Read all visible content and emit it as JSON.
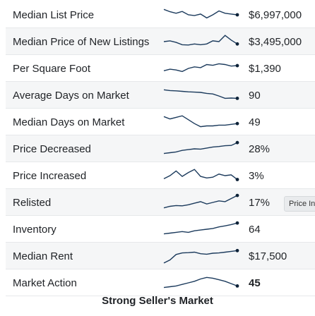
{
  "metrics": [
    {
      "label": "Median List Price",
      "value": "$6,997,000",
      "trend": [
        0.85,
        0.7,
        0.6,
        0.72,
        0.5,
        0.45,
        0.55,
        0.3,
        0.5,
        0.75,
        0.6,
        0.55,
        0.5
      ]
    },
    {
      "label": "Median Price of New Listings",
      "value": "$3,495,000",
      "trend": [
        0.5,
        0.55,
        0.45,
        0.3,
        0.28,
        0.35,
        0.3,
        0.35,
        0.55,
        0.5,
        0.9,
        0.6,
        0.35
      ]
    },
    {
      "label": "Per Square Foot",
      "value": "$1,390",
      "trend": [
        0.35,
        0.45,
        0.4,
        0.3,
        0.5,
        0.6,
        0.55,
        0.75,
        0.7,
        0.8,
        0.75,
        0.65,
        0.68
      ]
    },
    {
      "label": "Average Days on Market",
      "value": "90",
      "trend": [
        0.85,
        0.8,
        0.78,
        0.75,
        0.72,
        0.7,
        0.68,
        0.62,
        0.58,
        0.45,
        0.3,
        0.32,
        0.3
      ]
    },
    {
      "label": "Median Days on Market",
      "value": "49",
      "trend": [
        0.85,
        0.7,
        0.8,
        0.9,
        0.65,
        0.4,
        0.2,
        0.25,
        0.25,
        0.3,
        0.3,
        0.35,
        0.4
      ]
    },
    {
      "label": "Price Decreased",
      "value": "28%",
      "trend": [
        0.2,
        0.25,
        0.3,
        0.4,
        0.45,
        0.5,
        0.48,
        0.55,
        0.62,
        0.65,
        0.7,
        0.72,
        0.9
      ]
    },
    {
      "label": "Price Increased",
      "value": "3%",
      "trend": [
        0.3,
        0.5,
        0.8,
        0.45,
        0.7,
        0.9,
        0.45,
        0.35,
        0.4,
        0.6,
        0.5,
        0.55,
        0.25
      ]
    },
    {
      "label": "Relisted",
      "value": "17%",
      "trend": [
        0.15,
        0.25,
        0.3,
        0.28,
        0.35,
        0.45,
        0.55,
        0.4,
        0.5,
        0.6,
        0.55,
        0.75,
        0.95
      ]
    },
    {
      "label": "Inventory",
      "value": "64",
      "trend": [
        0.2,
        0.25,
        0.3,
        0.35,
        0.3,
        0.4,
        0.45,
        0.5,
        0.55,
        0.65,
        0.72,
        0.8,
        0.9
      ]
    },
    {
      "label": "Median Rent",
      "value": "$17,500",
      "trend": [
        0.05,
        0.25,
        0.6,
        0.7,
        0.72,
        0.75,
        0.65,
        0.62,
        0.68,
        0.7,
        0.75,
        0.8,
        0.85
      ]
    },
    {
      "label": "Market Action",
      "value": "45",
      "trend": [
        0.2,
        0.25,
        0.3,
        0.4,
        0.5,
        0.6,
        0.75,
        0.85,
        0.8,
        0.7,
        0.6,
        0.45,
        0.3
      ]
    }
  ],
  "tooltip": "Price Inc",
  "footer": "Strong Seller's Market",
  "colors": {
    "line": "#1b3a5c",
    "dot": "#0d2238",
    "stripe": "#f5f6f7",
    "divider": "#e6e8ea"
  }
}
